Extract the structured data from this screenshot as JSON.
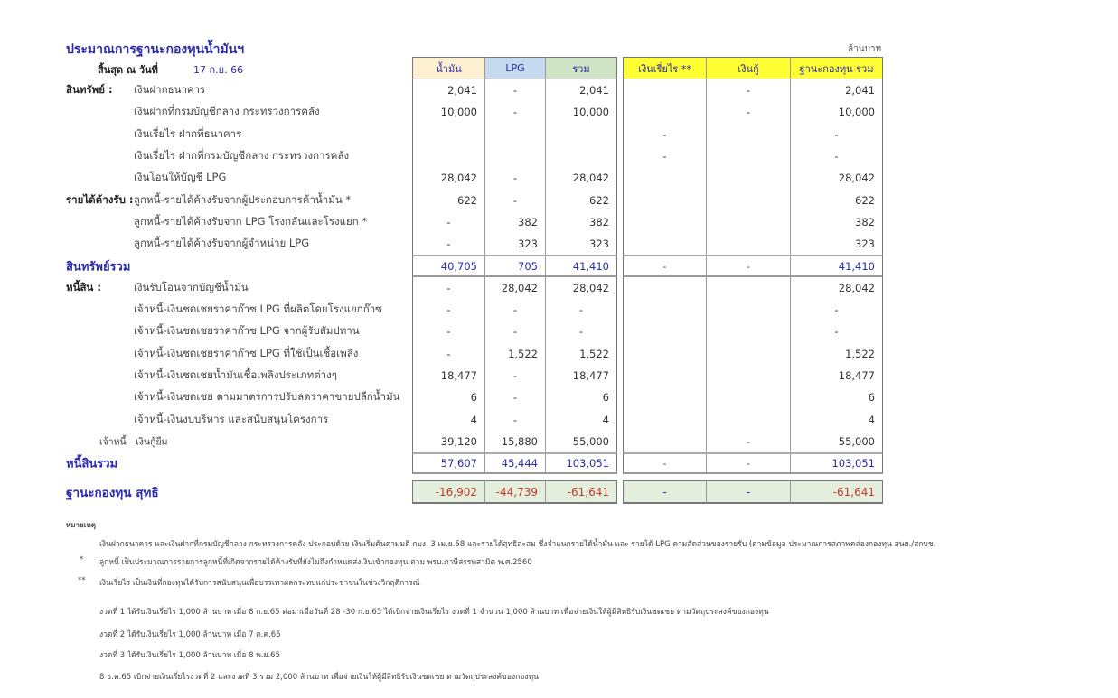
{
  "title": "ประมาณการฐานะกองทุนน้ำมันฯ",
  "unit": "ล้านบาท",
  "as_of_label": "สิ้นสุด ณ วันที่",
  "as_of_date": "17 ก.ย. 66",
  "colors": {
    "oil_header": "#fdf0d0",
    "lpg_header": "#c5d9ef",
    "total_header": "#cfe4c4",
    "right_header": "#ffff33",
    "net_row": "#e4eedc",
    "blue_text": "#2b2bb0",
    "negative": "#c0392b"
  },
  "columns": [
    "น้ำมัน",
    "LPG",
    "รวม",
    "เงินเรี่ยไร  **",
    "เงินกู้",
    "ฐานะกองทุน รวม"
  ],
  "assets": {
    "rows": [
      {
        "section": "สินทรัพย์  :",
        "label": "เงินฝากธนาคาร",
        "values": [
          "2,041",
          "-",
          "2,041",
          "",
          "-",
          "2,041"
        ]
      },
      {
        "section": "",
        "label": "เงินฝากที่กรมบัญชีกลาง กระทรวงการคลัง",
        "values": [
          "10,000",
          "-",
          "10,000",
          "",
          "-",
          "10,000"
        ]
      },
      {
        "section": "",
        "label": "เงินเรี่ยไร ฝากที่ธนาคาร",
        "values": [
          "",
          "",
          "",
          "-",
          "",
          "-"
        ]
      },
      {
        "section": "",
        "label": "เงินเรี่ยไร ฝากที่กรมบัญชีกลาง กระทรวงการคลัง",
        "values": [
          "",
          "",
          "",
          "-",
          "",
          "-"
        ]
      },
      {
        "section": "",
        "label": "เงินโอนให้บัญชี LPG",
        "values": [
          "28,042",
          "-",
          "28,042",
          "",
          "",
          "28,042"
        ]
      },
      {
        "section": "รายได้ค้างรับ :",
        "label": "ลูกหนี้-รายได้ค้างรับจากผู้ประกอบการค้าน้ำมัน  *",
        "values": [
          "622",
          "-",
          "622",
          "",
          "",
          "622"
        ]
      },
      {
        "section": "",
        "label": "ลูกหนี้-รายได้ค้างรับจาก LPG โรงกลั่นและโรงแยก *",
        "values": [
          "-",
          "382",
          "382",
          "",
          "",
          "382"
        ]
      },
      {
        "section": "",
        "label": "ลูกหนี้-รายได้ค้างรับจากผู้จำหน่าย LPG",
        "values": [
          "-",
          "323",
          "323",
          "",
          "",
          "323"
        ]
      }
    ],
    "total": {
      "label": "สินทรัพย์รวม",
      "values": [
        "40,705",
        "705",
        "41,410",
        "-",
        "-",
        "41,410"
      ]
    }
  },
  "liabilities": {
    "rows": [
      {
        "section": "หนี้สิน  :",
        "label": "เงินรับโอนจากบัญชีน้ำมัน",
        "values": [
          "-",
          "28,042",
          "28,042",
          "",
          "",
          "28,042"
        ]
      },
      {
        "section": "",
        "label": "เจ้าหนี้-เงินชดเชยราคาก๊าซ LPG  ที่ผลิตโดยโรงแยกก๊าซ",
        "values": [
          "-",
          "-",
          "-",
          "",
          "",
          "-"
        ]
      },
      {
        "section": "",
        "label": "เจ้าหนี้-เงินชดเชยราคาก๊าซ LPG  จากผู้รับสัมปทาน",
        "values": [
          "-",
          "-",
          "-",
          "",
          "",
          "-"
        ]
      },
      {
        "section": "",
        "label": "เจ้าหนี้-เงินชดเชยราคาก๊าซ LPG  ที่ใช้เป็นเชื้อเพลิง",
        "values": [
          "-",
          "1,522",
          "1,522",
          "",
          "",
          "1,522"
        ]
      },
      {
        "section": "",
        "label": "เจ้าหนี้-เงินชดเชยน้ำมันเชื้อเพลิงประเภทต่างๆ",
        "values": [
          "18,477",
          "-",
          "18,477",
          "",
          "",
          "18,477"
        ]
      },
      {
        "section": "",
        "label": "เจ้าหนี้-เงินชดเชย ตามมาตรการปรับลดราคาขายปลีกน้ำมัน",
        "values": [
          "6",
          "-",
          "6",
          "",
          "",
          "6"
        ]
      },
      {
        "section": "",
        "label": "เจ้าหนี้-เงินงบบริหาร และสนับสนุนโครงการ",
        "values": [
          "4",
          "-",
          "4",
          "",
          "",
          "4"
        ]
      },
      {
        "section": "",
        "label": "เจ้าหนี้ - เงินกู้ยืม",
        "sub": true,
        "values": [
          "39,120",
          "15,880",
          "55,000",
          "",
          "-",
          "55,000"
        ]
      }
    ],
    "total": {
      "label": "หนี้สินรวม",
      "values": [
        "57,607",
        "45,444",
        "103,051",
        "-",
        "-",
        "103,051"
      ]
    }
  },
  "net": {
    "label": "ฐานะกองทุน สุทธิ",
    "values": [
      "-16,902",
      "-44,739",
      "-61,641",
      "-",
      "-",
      "-61,641"
    ]
  },
  "notes": {
    "heading": "หมายเหตุ",
    "n0": "เงินฝากธนาคาร และเงินฝากที่กรมบัญชีกลาง กระทรวงการคลัง ประกอบด้วย เงินเริ่มต้นตามมติ กบง. 3 เม.ย.58 และรายได้สุทธิสะสม ซึ่งจำแนกรายได้น้ำมัน และ รายได้ LPG  ตามสัดส่วนของรายรับ (ตามข้อมูล ประมาณการสภาพคล่องกองทุน สนย./สกบช.",
    "m1": "*",
    "n1": "ลูกหนี้ เป็นประมาณการรายการลูกหนี้ที่เกิดจากรายได้ค้างรับที่ยังไม่ถึงกำหนดส่งเงินเข้ากองทุน ตาม พรบ.ภาษีสรรพสามิต พ.ศ.2560",
    "m2": "**",
    "n2": "เงินเรี่ยไร เป็นเงินที่กองทุนได้รับการสนับสนุนเพื่อบรรเทาผลกระทบแก่ประชาชนในช่วงวิกฤติการณ์",
    "n3": "งวดที่ 1 ได้รับเงินเรี่ยไร 1,000 ล้านบาท เมื่อ 8 ก.ย.65  ต่อมาเมื่อวันที่ 28 -30 ก.ย.65 ได้เบิกจ่ายเงินเรี่ยไร งวดที่ 1 จำนวน 1,000 ล้านบาท เพื่อจ่ายเงินให้ผู้มีสิทธิรับเงินชดเชย ตามวัตถุประสงค์ของกองทุน",
    "n4": "งวดที่ 2 ได้รับเงินเรี่ยไร 1,000 ล้านบาท เมื่อ 7 ต.ค.65",
    "n5": "งวดที่ 3 ได้รับเงินเรี่ยไร 1,000 ล้านบาท เมื่อ 8 พ.ย.65",
    "n6": "8 ธ.ค.65 เบิกจ่ายเงินเรี่ยไรงวดที่ 2 และงวดที่ 3 รวม 2,000 ล้านบาท เพื่อจ่ายเงินให้ผู้มีสิทธิรับเงินชดเชย ตามวัตถุประสงค์ของกองทุน"
  }
}
